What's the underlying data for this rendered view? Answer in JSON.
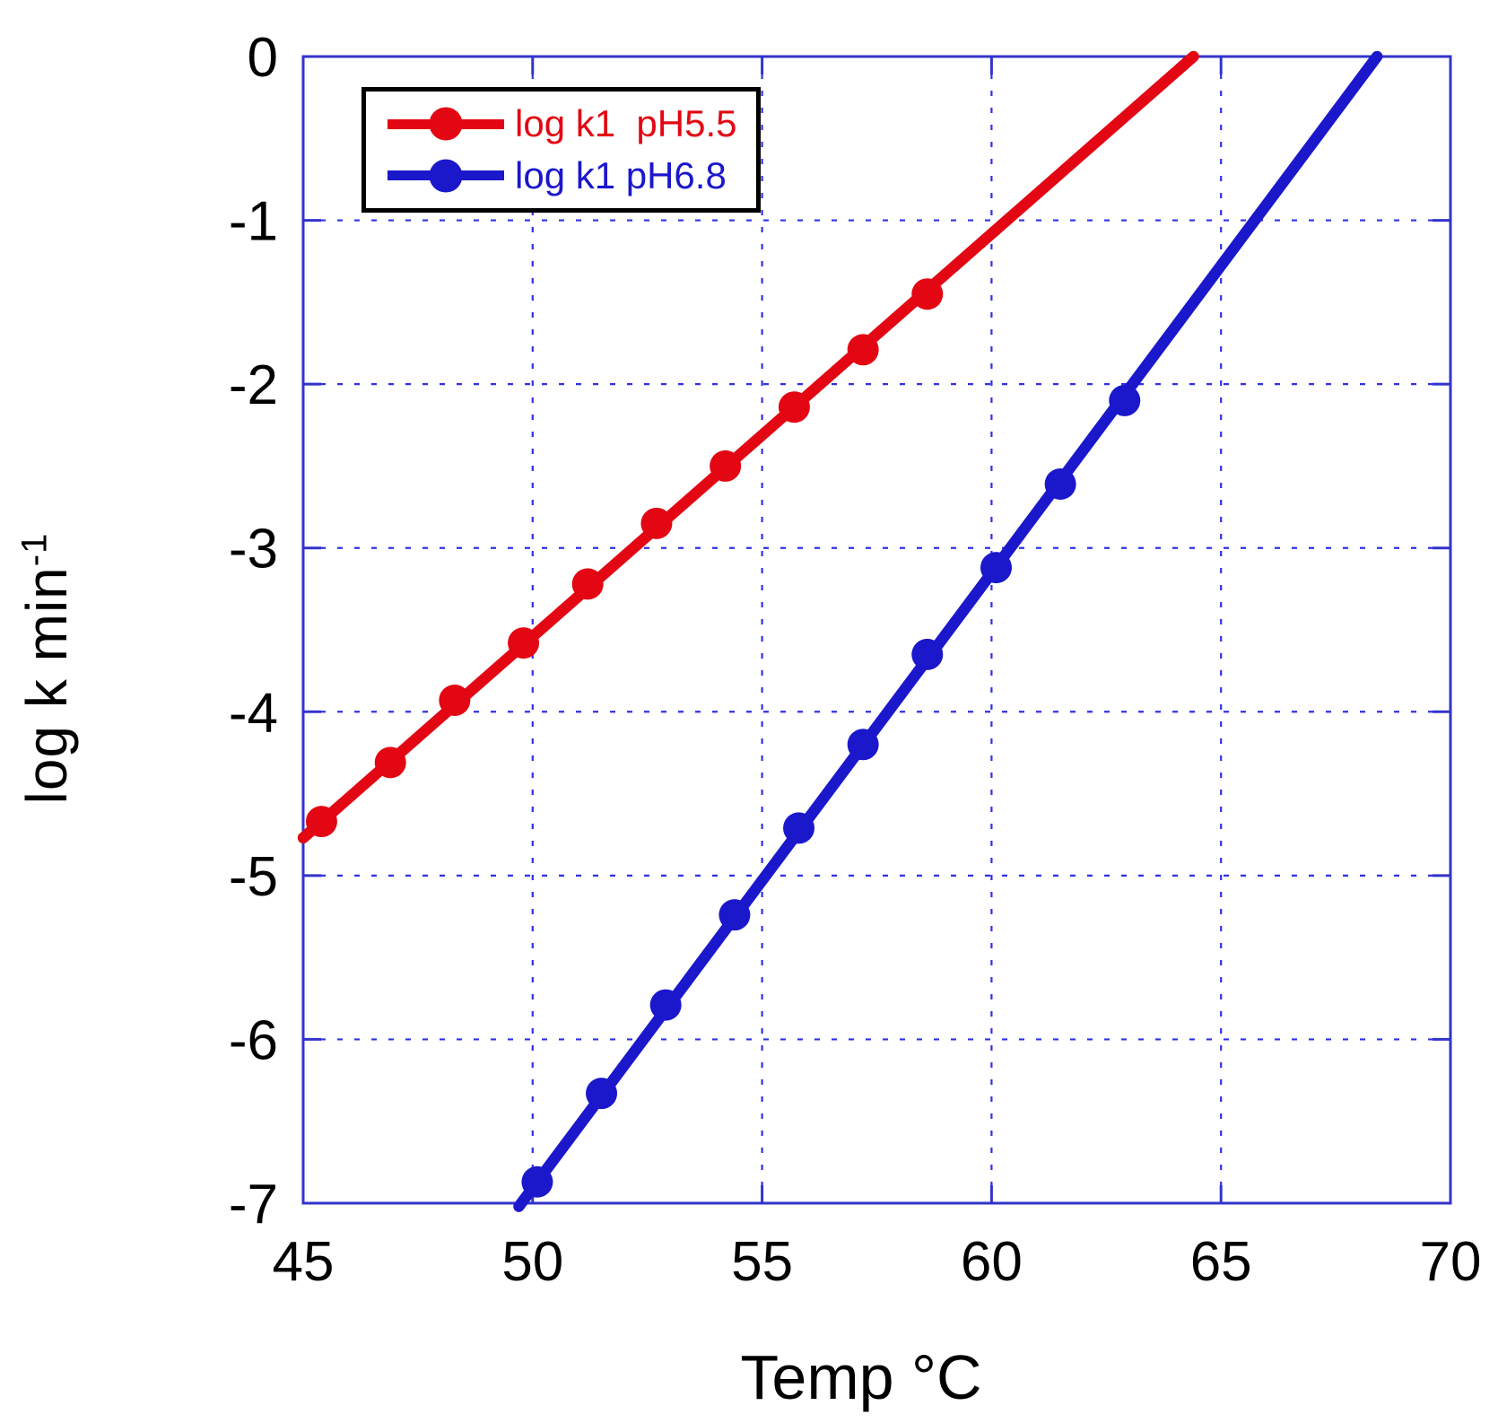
{
  "chart_data": {
    "type": "line",
    "title": "",
    "xlabel": "Temp °C",
    "ylabel": "log k min⁻¹",
    "ylabel_main": "log k  min",
    "ylabel_sup": "-1",
    "xlim": [
      45,
      70
    ],
    "ylim": [
      -7,
      0
    ],
    "x_ticks": [
      45,
      50,
      55,
      60,
      65,
      70
    ],
    "y_ticks": [
      0,
      -1,
      -2,
      -3,
      -4,
      -5,
      -6,
      -7
    ],
    "grid": {
      "show": true,
      "style": "dashed",
      "color": "#3030e8"
    },
    "frame_color": "#3333cc",
    "tick_style": "inward all four sides",
    "legend_position": "top-left inside plot",
    "legend_border_color": "#000000",
    "legend_background": "#ffffff",
    "text_color": "#000000",
    "series": [
      {
        "name": "log k1  pH5.5",
        "color": "#e30613",
        "marker": "circle",
        "points": [
          [
            45.4,
            -4.67
          ],
          [
            46.9,
            -4.31
          ],
          [
            48.3,
            -3.93
          ],
          [
            49.8,
            -3.58
          ],
          [
            51.2,
            -3.22
          ],
          [
            52.7,
            -2.85
          ],
          [
            54.2,
            -2.5
          ],
          [
            55.7,
            -2.14
          ],
          [
            57.2,
            -1.79
          ],
          [
            58.6,
            -1.45
          ]
        ],
        "trend_line": {
          "from": [
            45.0,
            -4.77
          ],
          "to": [
            64.4,
            0.0
          ]
        }
      },
      {
        "name": "log k1 pH6.8",
        "color": "#1b17cb",
        "marker": "circle",
        "points": [
          [
            50.1,
            -6.87
          ],
          [
            51.5,
            -6.33
          ],
          [
            52.9,
            -5.79
          ],
          [
            54.4,
            -5.24
          ],
          [
            55.8,
            -4.71
          ],
          [
            57.2,
            -4.2
          ],
          [
            58.6,
            -3.65
          ],
          [
            60.1,
            -3.12
          ],
          [
            61.5,
            -2.61
          ],
          [
            62.9,
            -2.1
          ]
        ],
        "trend_line": {
          "from": [
            49.7,
            -7.02
          ],
          "to": [
            68.4,
            0.0
          ]
        }
      }
    ]
  }
}
